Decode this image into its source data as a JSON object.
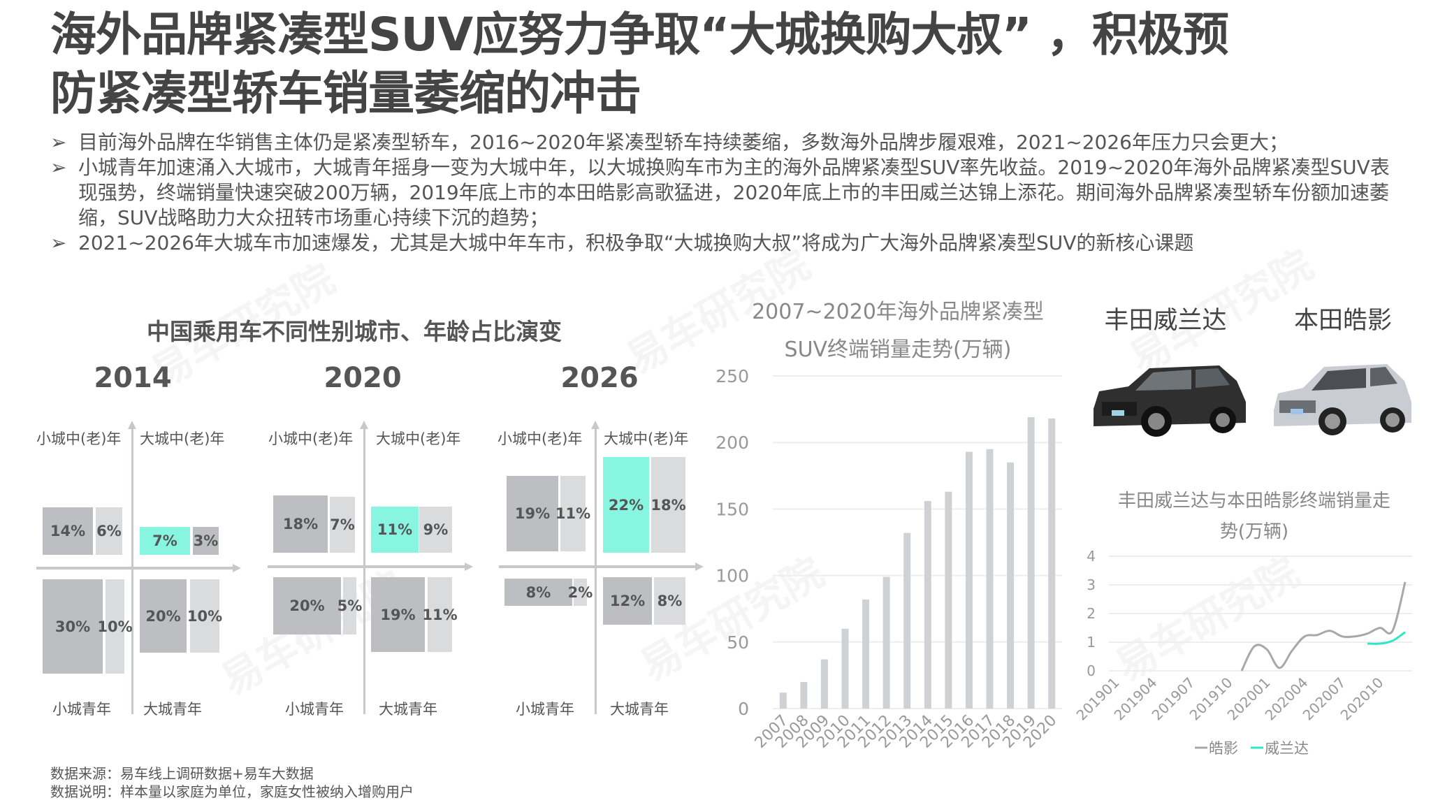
{
  "title": {
    "line1": "海外品牌紧凑型SUV应努力争取“大城换购大叔” ，积极预",
    "line2": "防紧凑型轿车销量萎缩的冲击"
  },
  "bullets": [
    "目前海外品牌在华销售主体仍是紧凑型轿车，2016~2020年紧凑型轿车持续萎缩，多数海外品牌步履艰难，2021~2026年压力只会更大；",
    "小城青年加速涌入大城市，大城青年摇身一变为大城中年，以大城换购车市为主的海外品牌紧凑型SUV率先收益。2019~2020年海外品牌紧凑型SUV表现强势，终端销量快速突破200万辆，2019年底上市的本田皓影高歌猛进，2020年底上市的丰田威兰达锦上添花。期间海外品牌紧凑型轿车份额加速萎缩，SUV战略助力大众扭转市场重心持续下沉的趋势；",
    "2021~2026年大城车市加速爆发，尤其是大城中年车市，积极争取“大城换购大叔”将成为广大海外品牌紧凑型SUV的新核心课题"
  ],
  "bullet_icon": "arrowhead-right-icon",
  "watermark": "易车研究院 Yiche Research",
  "quadrant_chart": {
    "title": "中国乘用车不同性别城市、年龄占比演变",
    "quadrant_labels": {
      "top_left": "小城中(老)年",
      "top_right": "大城中(老)年",
      "bottom_left": "小城青年",
      "bottom_right": "大城青年"
    },
    "colors": {
      "dark": "#bcbec1",
      "light": "#d9dbdd",
      "highlight": "#87f5e0"
    },
    "panels": [
      {
        "year": "2014",
        "top_left": [
          "14%",
          "6%"
        ],
        "top_right": [
          "7%",
          "3%"
        ],
        "bottom_left": [
          "30%",
          "10%"
        ],
        "bottom_right": [
          "20%",
          "10%"
        ]
      },
      {
        "year": "2020",
        "top_left": [
          "18%",
          "7%"
        ],
        "top_right": [
          "11%",
          "9%"
        ],
        "bottom_left": [
          "20%",
          "5%"
        ],
        "bottom_right": [
          "19%",
          "11%"
        ]
      },
      {
        "year": "2026",
        "top_left": [
          "19%",
          "11%"
        ],
        "top_right": [
          "22%",
          "18%"
        ],
        "bottom_left": [
          "8%",
          "2%"
        ],
        "bottom_right": [
          "12%",
          "8%"
        ]
      }
    ]
  },
  "chart_data": [
    {
      "type": "bar",
      "title": "2007~2020年海外品牌紧凑型SUV终端销量走势(万辆)",
      "title_lines": [
        "2007~2020年海外品牌紧凑型",
        "SUV终端销量走势(万辆)"
      ],
      "categories": [
        "2007",
        "2008",
        "2009",
        "2010",
        "2011",
        "2012",
        "2013",
        "2014",
        "2015",
        "2016",
        "2017",
        "2018",
        "2019",
        "2020"
      ],
      "values": [
        12,
        20,
        37,
        60,
        82,
        99,
        132,
        156,
        163,
        193,
        195,
        185,
        219,
        218
      ],
      "ylim": [
        0,
        250
      ],
      "yticks": [
        0,
        50,
        100,
        150,
        200,
        250
      ],
      "grid": true,
      "bar_color": "#cfd2d5"
    },
    {
      "type": "line",
      "title": "丰田威兰达与本田皓影终端销量走势(万辆)",
      "title_lines": [
        "丰田威兰达与本田皓影终端销量走",
        "势(万辆)"
      ],
      "x": [
        "201901",
        "201902",
        "201903",
        "201904",
        "201905",
        "201906",
        "201907",
        "201908",
        "201909",
        "201910",
        "201911",
        "201912",
        "202001",
        "202002",
        "202003",
        "202004",
        "202005",
        "202006",
        "202007",
        "202008",
        "202009",
        "202010",
        "202011",
        "202012"
      ],
      "xtick_labels": [
        "201901",
        "201904",
        "201907",
        "201910",
        "202001",
        "202004",
        "202007",
        "202010"
      ],
      "ylim": [
        0,
        4
      ],
      "yticks": [
        0,
        1,
        2,
        3,
        4
      ],
      "grid": true,
      "legend_placement": "bottom",
      "series": [
        {
          "name": "皓影",
          "color": "#a6a8ab",
          "values": [
            null,
            null,
            null,
            null,
            null,
            null,
            null,
            null,
            null,
            null,
            0,
            0.85,
            0.75,
            0.1,
            0.7,
            1.2,
            1.25,
            1.4,
            1.2,
            1.2,
            1.3,
            1.5,
            1.4,
            3.1
          ]
        },
        {
          "name": "威兰达",
          "color": "#2ee6c8",
          "values": [
            null,
            null,
            null,
            null,
            null,
            null,
            null,
            null,
            null,
            null,
            null,
            null,
            null,
            null,
            null,
            null,
            null,
            null,
            null,
            null,
            0.95,
            0.95,
            1.05,
            1.35
          ]
        }
      ]
    }
  ],
  "cars": [
    {
      "name": "丰田威兰达",
      "color": "#2f2f30"
    },
    {
      "name": "本田皓影",
      "color": "#c9ccd3"
    }
  ],
  "footer": {
    "source": "数据来源：易车线上调研数据+易车大数据",
    "note": "数据说明：样本量以家庭为单位，家庭女性被纳入增购用户"
  }
}
